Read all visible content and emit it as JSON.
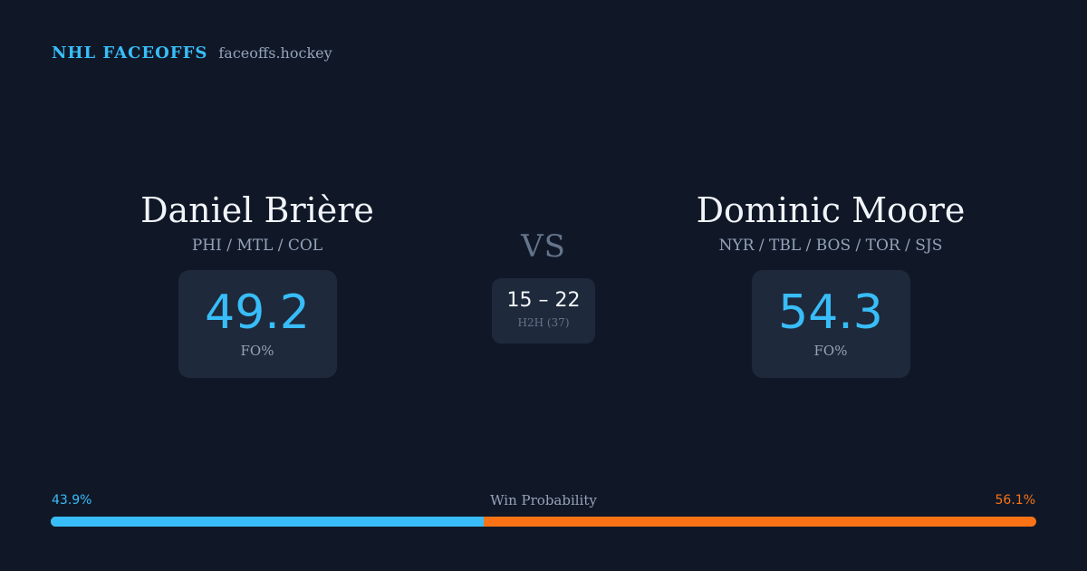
{
  "brand": {
    "title": "NHL FACEOFFS",
    "domain": "faceoffs.hockey"
  },
  "player_left": {
    "name": "Daniel Brière",
    "teams": "PHI / MTL / COL",
    "stat_value": "49.2",
    "stat_label": "FO%"
  },
  "player_right": {
    "name": "Dominic Moore",
    "teams": "NYR / TBL / BOS / TOR / SJS",
    "stat_value": "54.3",
    "stat_label": "FO%"
  },
  "matchup": {
    "vs_label": "VS",
    "h2h_score": "15 – 22",
    "h2h_label": "H2H (37)"
  },
  "win_probability": {
    "title": "Win Probability",
    "left_label": "43.9%",
    "right_label": "56.1%",
    "left_fraction": 0.439,
    "right_fraction": 0.561
  },
  "colors": {
    "background": "#101828",
    "card": "#1e293b",
    "accent_blue": "#38bdf8",
    "accent_orange": "#f97316",
    "muted": "#94a3b8"
  }
}
